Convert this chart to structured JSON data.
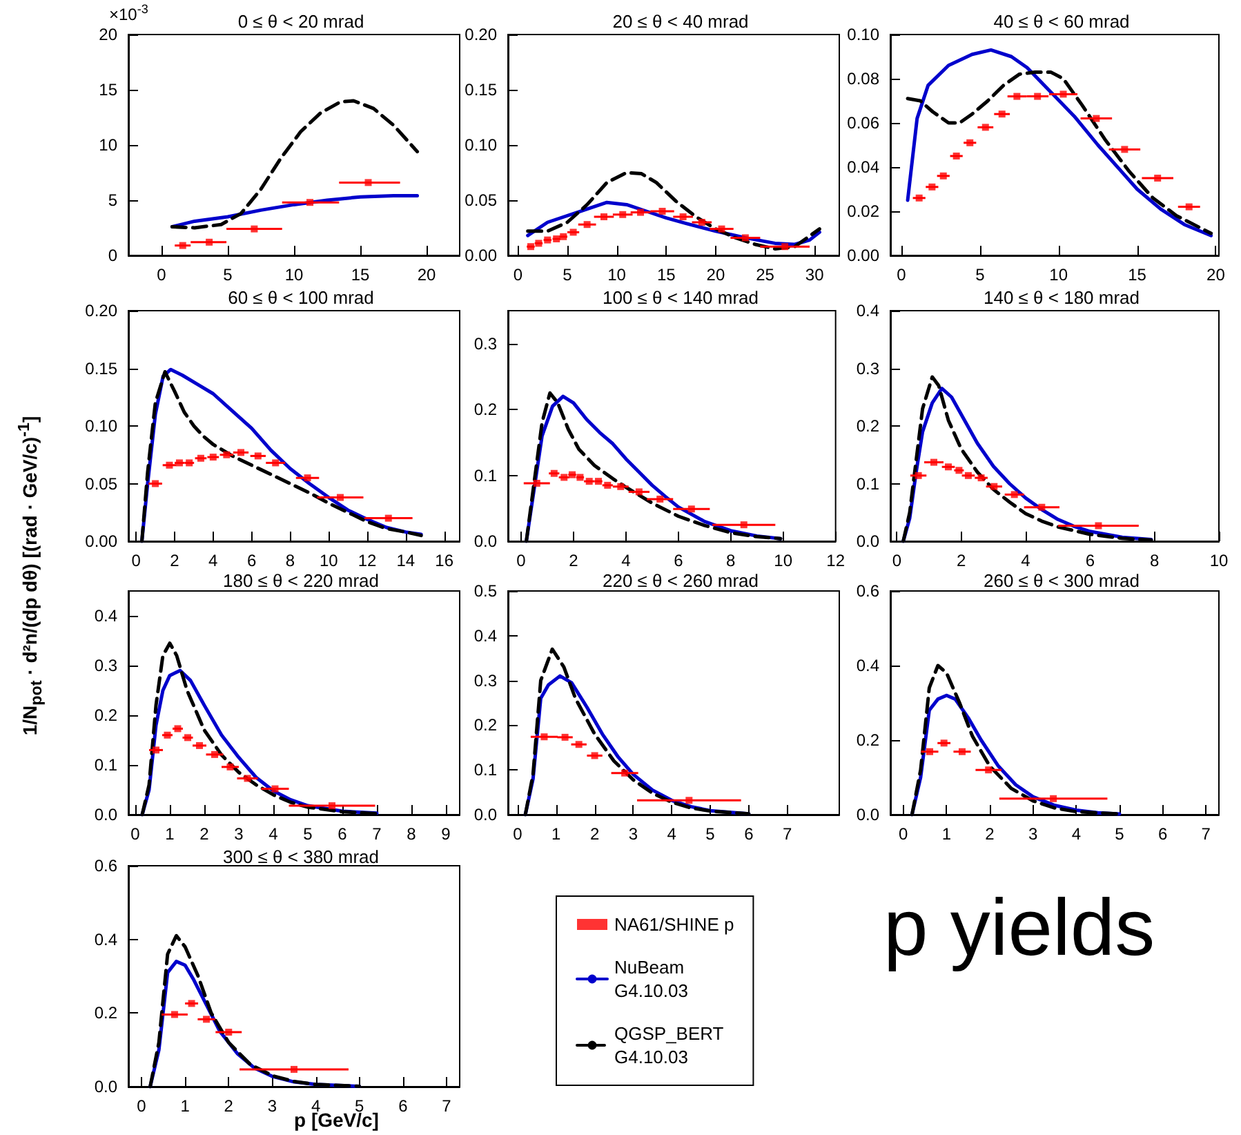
{
  "chart_data": [
    {
      "type": "line",
      "title": "0 ≤ θ < 20 mrad",
      "annotations": [
        "×10$^{-3}$"
      ],
      "xlim": [
        -2.5,
        22.5
      ],
      "xticks": [
        0,
        5,
        10,
        15,
        20
      ],
      "ylim": [
        0,
        20
      ],
      "yticks": [
        0,
        5,
        10,
        15,
        20
      ],
      "series": [
        {
          "type": "scatter",
          "color": "#ff0000",
          "marker": "square",
          "x": [
            1.6,
            3.6,
            7,
            11.2,
            15.6
          ],
          "values": [
            0.9,
            1.2,
            2.4,
            4.8,
            6.6
          ],
          "xerrors": [
            [
              1,
              2.2
            ],
            [
              2.2,
              4.9
            ],
            [
              4.9,
              9.1
            ],
            [
              9.1,
              13.4
            ],
            [
              13.4,
              18
            ]
          ]
        },
        {
          "color": "#0000cc",
          "x": [
            0.8,
            2.5,
            5,
            7.5,
            10,
            12.5,
            15,
            17.5,
            19.3
          ],
          "values": [
            2.6,
            3.1,
            3.5,
            4.1,
            4.6,
            5.0,
            5.3,
            5.4,
            5.4
          ]
        },
        {
          "color": "#000000",
          "line_style": "dashed",
          "x": [
            0.8,
            2.5,
            4.5,
            6,
            7.5,
            9,
            10.5,
            12,
            13.5,
            14.5,
            16,
            17.5,
            19.3
          ],
          "values": [
            2.6,
            2.5,
            2.8,
            3.8,
            6,
            8.8,
            11.2,
            12.9,
            13.9,
            14.0,
            13.3,
            11.8,
            9.4
          ]
        }
      ]
    },
    {
      "type": "line",
      "title": "20 ≤ θ < 40 mrad",
      "xlim": [
        -1,
        32.5
      ],
      "xticks": [
        0,
        5,
        10,
        15,
        20,
        25,
        30
      ],
      "ylim": [
        0,
        0.2
      ],
      "yticks": [
        {
          "value": 0,
          "label": "0.00"
        },
        {
          "value": 0.05,
          "label": "0.05"
        },
        {
          "value": 0.1,
          "label": "0.10"
        },
        {
          "value": 0.15,
          "label": "0.15"
        },
        {
          "value": 0.2,
          "label": "0.20"
        }
      ],
      "series": [
        {
          "type": "scatter",
          "color": "#ff0000",
          "marker": "square",
          "x": [
            1.3,
            2.1,
            3,
            3.9,
            4.6,
            5.6,
            7,
            8.7,
            10.6,
            12.4,
            14.6,
            16.7,
            18.6,
            20.6,
            23,
            27
          ],
          "values": [
            0.008,
            0.011,
            0.014,
            0.015,
            0.017,
            0.021,
            0.028,
            0.035,
            0.037,
            0.039,
            0.04,
            0.035,
            0.03,
            0.024,
            0.016,
            0.008
          ],
          "xerrors": [
            0.4,
            0.4,
            0.4,
            0.4,
            0.4,
            0.6,
            0.9,
            1,
            1,
            1,
            1.2,
            1,
            1,
            1.2,
            1.5,
            2.5
          ]
        },
        {
          "color": "#0000cc",
          "x": [
            1,
            3,
            6,
            9,
            11,
            13,
            15,
            17,
            20,
            23,
            26,
            28,
            29.5,
            30.5
          ],
          "values": [
            0.018,
            0.03,
            0.039,
            0.048,
            0.046,
            0.04,
            0.034,
            0.029,
            0.022,
            0.016,
            0.011,
            0.01,
            0.014,
            0.021
          ]
        },
        {
          "color": "#000000",
          "line_style": "dashed",
          "x": [
            1,
            3,
            5,
            7,
            9,
            11,
            12.5,
            14,
            16,
            18,
            20,
            22,
            24,
            26,
            28,
            30.5
          ],
          "values": [
            0.022,
            0.022,
            0.03,
            0.046,
            0.066,
            0.075,
            0.074,
            0.066,
            0.049,
            0.035,
            0.024,
            0.016,
            0.01,
            0.006,
            0.008,
            0.024
          ]
        }
      ]
    },
    {
      "type": "line",
      "title": "40 ≤ θ < 60 mrad",
      "xlim": [
        -0.7,
        20.2
      ],
      "xticks": [
        0,
        5,
        10,
        15,
        20
      ],
      "ylim": [
        0,
        0.1
      ],
      "yticks": [
        {
          "value": 0,
          "label": "0.00"
        },
        {
          "value": 0.02,
          "label": "0.02"
        },
        {
          "value": 0.04,
          "label": "0.04"
        },
        {
          "value": 0.06,
          "label": "0.06"
        },
        {
          "value": 0.08,
          "label": "0.08"
        },
        {
          "value": 0.1,
          "label": "0.10"
        }
      ],
      "series": [
        {
          "type": "scatter",
          "color": "#ff0000",
          "marker": "square",
          "x": [
            1.13,
            1.95,
            2.67,
            3.5,
            4.36,
            5.35,
            6.4,
            7.35,
            8.66,
            10.3,
            12.4,
            14.2,
            16.3,
            18.3
          ],
          "values": [
            0.026,
            0.031,
            0.036,
            0.045,
            0.051,
            0.058,
            0.064,
            0.072,
            0.072,
            0.073,
            0.062,
            0.048,
            0.035,
            0.022
          ],
          "xerrors": [
            0.4,
            0.4,
            0.4,
            0.4,
            0.4,
            0.5,
            0.5,
            0.6,
            0.7,
            0.9,
            1,
            1,
            1,
            0.7
          ]
        },
        {
          "color": "#0000cc",
          "x": [
            0.4,
            1,
            1.7,
            3,
            4.5,
            5.7,
            7,
            8,
            9.5,
            11,
            12.5,
            14,
            15,
            16.5,
            18,
            19.7
          ],
          "values": [
            0.025,
            0.062,
            0.077,
            0.086,
            0.091,
            0.093,
            0.09,
            0.085,
            0.074,
            0.063,
            0.05,
            0.038,
            0.03,
            0.021,
            0.014,
            0.009
          ]
        },
        {
          "color": "#000000",
          "line_style": "dashed",
          "x": [
            0.4,
            1.2,
            2,
            3,
            3.7,
            4.5,
            5.5,
            6.5,
            7.5,
            8.5,
            9.5,
            10.3,
            11.5,
            13,
            14.5,
            16,
            17.5,
            19.7
          ],
          "values": [
            0.071,
            0.07,
            0.065,
            0.06,
            0.06,
            0.064,
            0.07,
            0.077,
            0.082,
            0.083,
            0.083,
            0.08,
            0.068,
            0.052,
            0.038,
            0.026,
            0.018,
            0.01
          ]
        }
      ]
    },
    {
      "type": "line",
      "title": "60 ≤ θ < 100 mrad",
      "xlim": [
        -0.4,
        16.8
      ],
      "xticks": [
        0,
        2,
        4,
        6,
        8,
        10,
        12,
        14,
        16
      ],
      "ylim": [
        0,
        0.2
      ],
      "yticks": [
        {
          "value": 0,
          "label": "0.00"
        },
        {
          "value": 0.05,
          "label": "0.05"
        },
        {
          "value": 0.1,
          "label": "0.10"
        },
        {
          "value": 0.15,
          "label": "0.15"
        },
        {
          "value": 0.2,
          "label": "0.20"
        }
      ],
      "series": [
        {
          "type": "scatter",
          "color": "#ff0000",
          "marker": "square",
          "x": [
            1.0,
            1.73,
            2.25,
            2.76,
            3.36,
            4.0,
            4.7,
            5.44,
            6.33,
            7.24,
            8.9,
            10.6,
            13.1
          ],
          "values": [
            0.05,
            0.066,
            0.068,
            0.068,
            0.072,
            0.073,
            0.075,
            0.077,
            0.074,
            0.068,
            0.055,
            0.038,
            0.02
          ],
          "xerrors": [
            0.35,
            0.35,
            0.25,
            0.25,
            0.3,
            0.3,
            0.35,
            0.4,
            0.4,
            0.5,
            0.6,
            1.2,
            1.25
          ]
        },
        {
          "color": "#0000cc",
          "x": [
            0.3,
            0.6,
            1,
            1.4,
            1.8,
            2.4,
            3.2,
            4,
            5,
            6,
            7,
            8,
            9,
            10,
            11,
            12,
            13,
            14,
            14.8
          ],
          "values": [
            0,
            0.05,
            0.11,
            0.143,
            0.149,
            0.144,
            0.136,
            0.128,
            0.113,
            0.098,
            0.079,
            0.063,
            0.05,
            0.038,
            0.027,
            0.019,
            0.012,
            0.008,
            0.006
          ]
        },
        {
          "color": "#000000",
          "line_style": "dashed",
          "x": [
            0.3,
            0.6,
            1,
            1.5,
            2,
            2.5,
            3,
            3.5,
            4,
            5,
            6,
            7,
            8,
            9,
            10,
            11,
            12,
            13,
            14,
            14.8
          ],
          "values": [
            0,
            0.06,
            0.12,
            0.147,
            0.13,
            0.112,
            0.1,
            0.091,
            0.084,
            0.074,
            0.066,
            0.058,
            0.05,
            0.042,
            0.033,
            0.025,
            0.017,
            0.011,
            0.008,
            0.005
          ]
        }
      ]
    },
    {
      "type": "line",
      "title": "100 ≤ θ < 140 mrad",
      "xlim": [
        -0.5,
        12
      ],
      "xticks": [
        0,
        2,
        4,
        6,
        8,
        10,
        12
      ],
      "ylim": [
        0,
        0.35
      ],
      "yticks": [
        {
          "value": 0,
          "label": "0.0"
        },
        {
          "value": 0.1,
          "label": "0.1"
        },
        {
          "value": 0.2,
          "label": "0.2"
        },
        {
          "value": 0.3,
          "label": "0.3"
        }
      ],
      "series": [
        {
          "type": "scatter",
          "color": "#ff0000",
          "marker": "square",
          "x": [
            0.6,
            1.26,
            1.64,
            1.95,
            2.25,
            2.6,
            2.95,
            3.3,
            3.8,
            4.5,
            5.3,
            6.5,
            8.5
          ],
          "values": [
            0.088,
            0.103,
            0.097,
            0.101,
            0.097,
            0.091,
            0.091,
            0.085,
            0.083,
            0.075,
            0.064,
            0.049,
            0.025
          ],
          "xerrors": [
            0.5,
            0.2,
            0.2,
            0.15,
            0.15,
            0.2,
            0.15,
            0.2,
            0.3,
            0.4,
            0.5,
            0.7,
            1.2
          ]
        },
        {
          "color": "#0000cc",
          "x": [
            0.2,
            0.5,
            0.8,
            1.2,
            1.6,
            2,
            2.5,
            3,
            3.5,
            4,
            4.5,
            5,
            5.5,
            6,
            7,
            8,
            9,
            9.9
          ],
          "values": [
            0,
            0.08,
            0.16,
            0.205,
            0.22,
            0.21,
            0.185,
            0.165,
            0.148,
            0.125,
            0.105,
            0.085,
            0.068,
            0.052,
            0.03,
            0.016,
            0.008,
            0.004
          ]
        },
        {
          "color": "#000000",
          "line_style": "dashed",
          "x": [
            0.2,
            0.5,
            0.8,
            1.1,
            1.4,
            1.8,
            2.2,
            2.8,
            3.5,
            4,
            5,
            6,
            7,
            8,
            9,
            9.9
          ],
          "values": [
            0,
            0.09,
            0.18,
            0.225,
            0.21,
            0.17,
            0.14,
            0.115,
            0.095,
            0.082,
            0.058,
            0.038,
            0.024,
            0.013,
            0.007,
            0.004
          ]
        }
      ]
    },
    {
      "type": "line",
      "title": "140 ≤ θ < 180 mrad",
      "xlim": [
        -0.2,
        10
      ],
      "xticks": [
        0,
        2,
        4,
        6,
        8,
        10
      ],
      "ylim": [
        0,
        0.4
      ],
      "yticks": [
        {
          "value": 0,
          "label": "0.0"
        },
        {
          "value": 0.1,
          "label": "0.1"
        },
        {
          "value": 0.2,
          "label": "0.2"
        },
        {
          "value": 0.3,
          "label": "0.3"
        },
        {
          "value": 0.4,
          "label": "0.4"
        }
      ],
      "series": [
        {
          "type": "scatter",
          "color": "#ff0000",
          "marker": "square",
          "x": [
            0.67,
            1.15,
            1.6,
            1.93,
            2.22,
            2.62,
            3.02,
            3.65,
            4.5,
            6.26
          ],
          "values": [
            0.114,
            0.137,
            0.129,
            0.123,
            0.114,
            0.11,
            0.095,
            0.081,
            0.059,
            0.027
          ],
          "xerrors": [
            0.25,
            0.3,
            0.2,
            0.15,
            0.2,
            0.2,
            0.25,
            0.3,
            0.55,
            1.25
          ]
        },
        {
          "color": "#0000cc",
          "x": [
            0.2,
            0.4,
            0.6,
            0.8,
            1.1,
            1.4,
            1.7,
            2,
            2.5,
            3,
            3.5,
            4,
            4.5,
            5,
            5.5,
            6,
            7,
            7.9
          ],
          "values": [
            0,
            0.04,
            0.12,
            0.19,
            0.24,
            0.265,
            0.25,
            0.22,
            0.17,
            0.13,
            0.1,
            0.075,
            0.055,
            0.038,
            0.026,
            0.017,
            0.007,
            0.003
          ]
        },
        {
          "color": "#000000",
          "line_style": "dashed",
          "x": [
            0.2,
            0.4,
            0.6,
            0.8,
            1.1,
            1.3,
            1.6,
            2,
            2.5,
            3,
            3.5,
            4,
            4.5,
            5,
            6,
            7,
            7.9
          ],
          "values": [
            0,
            0.05,
            0.14,
            0.23,
            0.285,
            0.27,
            0.21,
            0.16,
            0.12,
            0.09,
            0.068,
            0.048,
            0.035,
            0.025,
            0.012,
            0.005,
            0.002
          ]
        }
      ]
    },
    {
      "type": "line",
      "title": "180 ≤ θ < 220 mrad",
      "ylabel": "1/N$_{pot}$ · d²n/(dp dθ) [(rad · GeV/c)$^{-1}$]",
      "xlim": [
        -0.2,
        9.4
      ],
      "xticks": [
        0,
        1,
        2,
        3,
        4,
        5,
        6,
        7,
        8,
        9
      ],
      "ylim": [
        0,
        0.45
      ],
      "yticks": [
        {
          "value": 0,
          "label": "0.0"
        },
        {
          "value": 0.1,
          "label": "0.1"
        },
        {
          "value": 0.2,
          "label": "0.2"
        },
        {
          "value": 0.3,
          "label": "0.3"
        },
        {
          "value": 0.4,
          "label": "0.4"
        }
      ],
      "series": [
        {
          "type": "scatter",
          "color": "#ff0000",
          "marker": "square",
          "x": [
            0.6,
            0.93,
            1.23,
            1.52,
            1.86,
            2.3,
            2.75,
            3.25,
            4.05,
            5.7
          ],
          "values": [
            0.13,
            0.16,
            0.173,
            0.155,
            0.139,
            0.121,
            0.096,
            0.073,
            0.052,
            0.018
          ],
          "xerrors": [
            0.2,
            0.15,
            0.15,
            0.15,
            0.2,
            0.25,
            0.25,
            0.3,
            0.4,
            1.25
          ]
        },
        {
          "color": "#0000cc",
          "x": [
            0.2,
            0.4,
            0.6,
            0.8,
            1,
            1.3,
            1.6,
            2,
            2.5,
            3,
            3.5,
            4,
            4.5,
            5,
            6,
            7
          ],
          "values": [
            0,
            0.05,
            0.18,
            0.25,
            0.28,
            0.29,
            0.27,
            0.22,
            0.16,
            0.115,
            0.075,
            0.048,
            0.03,
            0.018,
            0.007,
            0.003
          ]
        },
        {
          "color": "#000000",
          "line_style": "dashed",
          "x": [
            0.2,
            0.4,
            0.6,
            0.8,
            1,
            1.2,
            1.5,
            2,
            2.5,
            3,
            3.5,
            4,
            4.5,
            5,
            6,
            7
          ],
          "values": [
            0,
            0.06,
            0.22,
            0.32,
            0.345,
            0.32,
            0.25,
            0.17,
            0.12,
            0.085,
            0.06,
            0.04,
            0.025,
            0.015,
            0.006,
            0.002
          ]
        }
      ]
    },
    {
      "type": "line",
      "title": "220 ≤ θ < 260 mrad",
      "xlim": [
        -0.25,
        8.35
      ],
      "xticks": [
        0,
        1,
        2,
        3,
        4,
        5,
        6,
        7
      ],
      "ylim": [
        0,
        0.5
      ],
      "yticks": [
        {
          "value": 0,
          "label": "0.0"
        },
        {
          "value": 0.1,
          "label": "0.1"
        },
        {
          "value": 0.2,
          "label": "0.2"
        },
        {
          "value": 0.3,
          "label": "0.3"
        },
        {
          "value": 0.4,
          "label": "0.4"
        },
        {
          "value": 0.5,
          "label": "0.5"
        }
      ],
      "series": [
        {
          "type": "scatter",
          "color": "#ff0000",
          "marker": "square",
          "x": [
            0.69,
            1.23,
            1.59,
            2.0,
            2.78,
            4.45
          ],
          "values": [
            0.174,
            0.173,
            0.157,
            0.132,
            0.093,
            0.032
          ],
          "xerrors": [
            0.35,
            0.2,
            0.2,
            0.2,
            0.35,
            1.35
          ]
        },
        {
          "color": "#0000cc",
          "x": [
            0.2,
            0.4,
            0.6,
            0.8,
            1.1,
            1.4,
            1.8,
            2.2,
            2.6,
            3,
            3.5,
            4,
            4.5,
            5,
            6
          ],
          "values": [
            0,
            0.08,
            0.26,
            0.29,
            0.31,
            0.295,
            0.24,
            0.18,
            0.13,
            0.09,
            0.055,
            0.032,
            0.018,
            0.009,
            0.002
          ]
        },
        {
          "color": "#000000",
          "line_style": "dashed",
          "x": [
            0.2,
            0.4,
            0.6,
            0.9,
            1.2,
            1.5,
            2,
            2.5,
            3,
            3.5,
            4,
            4.5,
            5,
            6
          ],
          "values": [
            0,
            0.09,
            0.3,
            0.37,
            0.33,
            0.26,
            0.18,
            0.12,
            0.078,
            0.048,
            0.028,
            0.015,
            0.008,
            0.002
          ]
        }
      ]
    },
    {
      "type": "line",
      "title": "260 ≤ θ < 300 mrad",
      "xlim": [
        -0.3,
        7.3
      ],
      "xticks": [
        0,
        1,
        2,
        3,
        4,
        5,
        6,
        7
      ],
      "ylim": [
        0,
        0.6
      ],
      "yticks": [
        {
          "value": 0,
          "label": "0.0"
        },
        {
          "value": 0.2,
          "label": "0.2"
        },
        {
          "value": 0.4,
          "label": "0.4"
        },
        {
          "value": 0.6,
          "label": "0.6"
        }
      ],
      "series": [
        {
          "type": "scatter",
          "color": "#ff0000",
          "marker": "square",
          "x": [
            0.61,
            0.94,
            1.36,
            1.97,
            3.47
          ],
          "values": [
            0.169,
            0.192,
            0.169,
            0.12,
            0.043
          ],
          "xerrors": [
            0.2,
            0.15,
            0.2,
            0.3,
            1.25
          ]
        },
        {
          "color": "#0000cc",
          "x": [
            0.2,
            0.4,
            0.6,
            0.8,
            1,
            1.2,
            1.5,
            1.8,
            2.2,
            2.6,
            3,
            3.5,
            4,
            4.5,
            5
          ],
          "values": [
            0,
            0.1,
            0.28,
            0.31,
            0.32,
            0.31,
            0.26,
            0.2,
            0.13,
            0.08,
            0.048,
            0.025,
            0.012,
            0.005,
            0.002
          ]
        },
        {
          "color": "#000000",
          "line_style": "dashed",
          "x": [
            0.2,
            0.4,
            0.6,
            0.8,
            1,
            1.3,
            1.6,
            2,
            2.5,
            3,
            3.5,
            4,
            5
          ],
          "values": [
            0,
            0.12,
            0.34,
            0.4,
            0.38,
            0.3,
            0.21,
            0.13,
            0.07,
            0.037,
            0.018,
            0.008,
            0.002
          ]
        }
      ]
    },
    {
      "type": "line",
      "title": "300 ≤ θ < 380 mrad",
      "xlabel": "p [GeV/c]",
      "annotations": [
        "p yields"
      ],
      "legend": "right",
      "xlim": [
        -0.3,
        7.3
      ],
      "xticks": [
        0,
        1,
        2,
        3,
        4,
        5,
        6,
        7
      ],
      "ylim": [
        0,
        0.6
      ],
      "yticks": [
        {
          "value": 0,
          "label": "0.0"
        },
        {
          "value": 0.2,
          "label": "0.2"
        },
        {
          "value": 0.4,
          "label": "0.4"
        },
        {
          "value": 0.6,
          "label": "0.6"
        }
      ],
      "series": [
        {
          "type": "scatter",
          "name": "NA61/SHINE p",
          "color": "#ff0000",
          "marker": "square",
          "x": [
            0.76,
            1.15,
            1.49,
            2.0,
            3.5
          ],
          "values": [
            0.196,
            0.226,
            0.183,
            0.148,
            0.047
          ],
          "xerrors": [
            0.3,
            0.15,
            0.2,
            0.3,
            1.25
          ]
        },
        {
          "name": "NuBeam\nG4.10.03",
          "color": "#0000cc",
          "x": [
            0.2,
            0.4,
            0.6,
            0.8,
            1,
            1.2,
            1.5,
            1.8,
            2.2,
            2.6,
            3,
            3.5,
            4,
            5
          ],
          "values": [
            0,
            0.1,
            0.31,
            0.34,
            0.33,
            0.29,
            0.22,
            0.15,
            0.09,
            0.05,
            0.028,
            0.013,
            0.006,
            0.001
          ]
        },
        {
          "name": "QGSP_BERT\nG4.10.03",
          "color": "#000000",
          "line_style": "dashed",
          "x": [
            0.2,
            0.4,
            0.6,
            0.8,
            1,
            1.3,
            1.6,
            2,
            2.5,
            3,
            3.5,
            4,
            5
          ],
          "values": [
            0,
            0.12,
            0.36,
            0.41,
            0.38,
            0.3,
            0.2,
            0.12,
            0.06,
            0.03,
            0.014,
            0.006,
            0.001
          ]
        }
      ]
    }
  ]
}
